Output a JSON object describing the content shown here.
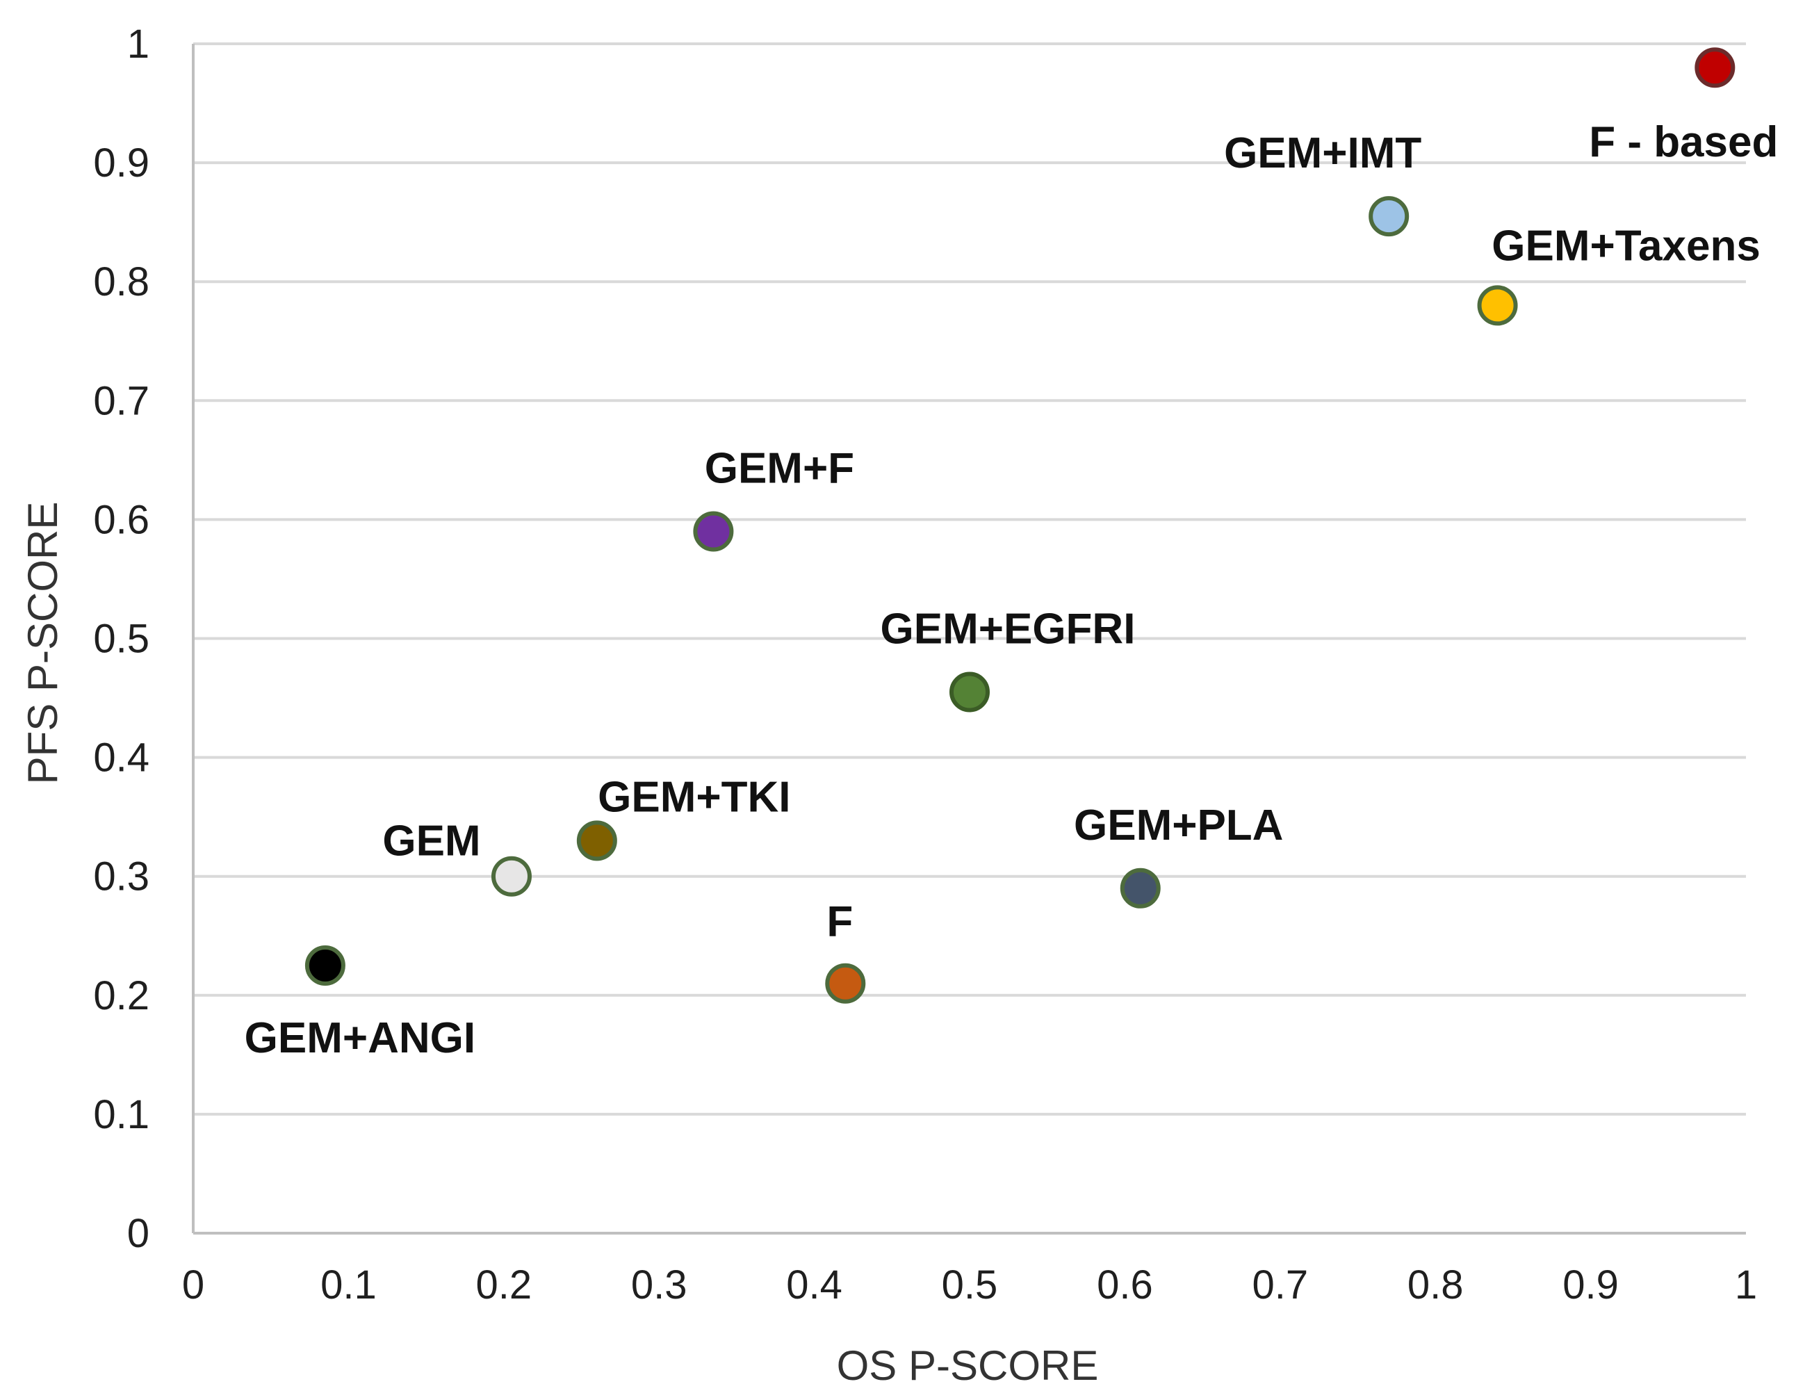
{
  "chart_data": {
    "type": "scatter",
    "title": "",
    "xlabel": "OS P-SCORE",
    "ylabel": "PFS P-SCORE",
    "xlim": [
      0,
      1
    ],
    "ylim": [
      0,
      1
    ],
    "grid": true,
    "x_ticks": [
      "0",
      "0.1",
      "0.2",
      "0.3",
      "0.4",
      "0.5",
      "0.6",
      "0.7",
      "0.8",
      "0.9",
      "1"
    ],
    "y_ticks": [
      "0",
      "0.1",
      "0.2",
      "0.3",
      "0.4",
      "0.5",
      "0.6",
      "0.7",
      "0.8",
      "0.9",
      "1"
    ],
    "points": [
      {
        "label": "F - based",
        "x": 0.98,
        "y": 0.98,
        "color": "#c00000",
        "stroke": "#6b2b2b"
      },
      {
        "label": "GEM+IMT",
        "x": 0.77,
        "y": 0.855,
        "color": "#9dc3e6",
        "stroke": "#4d6b3d"
      },
      {
        "label": "GEM+Taxens",
        "x": 0.84,
        "y": 0.78,
        "color": "#ffc000",
        "stroke": "#4d6b3d"
      },
      {
        "label": "GEM+F",
        "x": 0.335,
        "y": 0.59,
        "color": "#7030a0",
        "stroke": "#4d6b3d"
      },
      {
        "label": "GEM+EGFRI",
        "x": 0.5,
        "y": 0.455,
        "color": "#548235",
        "stroke": "#3b5c26"
      },
      {
        "label": "GEM+TKI",
        "x": 0.26,
        "y": 0.33,
        "color": "#7f6000",
        "stroke": "#4d6b3d"
      },
      {
        "label": "GEM",
        "x": 0.205,
        "y": 0.3,
        "color": "#e7e6e6",
        "stroke": "#4d6b3d"
      },
      {
        "label": "GEM+PLA",
        "x": 0.61,
        "y": 0.29,
        "color": "#44546a",
        "stroke": "#4d6b3d"
      },
      {
        "label": "F",
        "x": 0.42,
        "y": 0.21,
        "color": "#c55a11",
        "stroke": "#4d6b3d"
      },
      {
        "label": "GEM+ANGI",
        "x": 0.085,
        "y": 0.225,
        "color": "#000000",
        "stroke": "#4d6b3d"
      }
    ]
  }
}
